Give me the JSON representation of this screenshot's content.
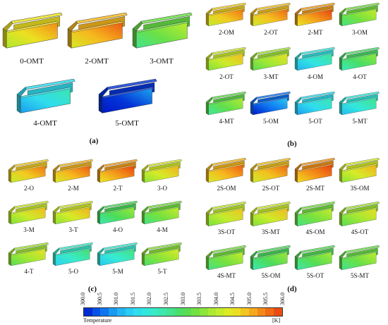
{
  "figure": {
    "panels": [
      {
        "label": "(a)",
        "items": [
          "0-OMT",
          "2-OMT",
          "3-OMT",
          "4-OMT",
          "5-OMT"
        ],
        "temps": [
          304.6,
          305.0,
          303.3,
          301.6,
          300.2
        ]
      },
      {
        "label": "(b)",
        "items": [
          "2-OM",
          "2-OT",
          "2-MT",
          "3-OM",
          "2-OT",
          "3-MT",
          "4-OM",
          "4-OT",
          "4-MT",
          "5-OM",
          "5-OT",
          "5-MT"
        ],
        "temps": [
          304.8,
          304.9,
          305.2,
          303.4,
          304.2,
          303.8,
          301.8,
          302.9,
          303.2,
          300.6,
          301.6,
          301.9
        ]
      },
      {
        "label": "(c)",
        "items": [
          "2-O",
          "2-M",
          "2-T",
          "3-O",
          "3-M",
          "3-T",
          "4-O",
          "4-M",
          "4-T",
          "5-O",
          "5-M",
          "5-T"
        ],
        "temps": [
          304.8,
          305.0,
          305.2,
          304.3,
          304.2,
          304.3,
          303.0,
          303.4,
          303.8,
          302.1,
          302.0,
          303.6
        ]
      },
      {
        "label": "(d)",
        "items": [
          "2S-OM",
          "2S-OT",
          "2S-MT",
          "3S-OM",
          "3S-OT",
          "3S-MT",
          "4S-OM",
          "4S-OT",
          "4S-MT",
          "5S-OM",
          "5S-OT",
          "5S-MT"
        ],
        "temps": [
          305.0,
          304.9,
          305.3,
          304.3,
          304.1,
          304.2,
          303.4,
          303.8,
          303.4,
          303.0,
          303.1,
          303.3
        ]
      }
    ],
    "colorbar": {
      "title": "Temperature",
      "unit": "[K]",
      "ticks": [
        "300.0",
        "300.5",
        "301.0",
        "301.5",
        "302.0",
        "302.5",
        "303.0",
        "303.5",
        "304.0",
        "304.5",
        "305.0",
        "305.5",
        "306.0"
      ],
      "min": 300.0,
      "max": 306.0,
      "colors": [
        "#0018c8",
        "#0a64f0",
        "#1eaaf0",
        "#2ed8f4",
        "#36ecd4",
        "#3ee6a0",
        "#4cdc5a",
        "#7ee23a",
        "#b8ec30",
        "#eaea22",
        "#f6b81e",
        "#f27a16",
        "#e63e10"
      ]
    }
  }
}
